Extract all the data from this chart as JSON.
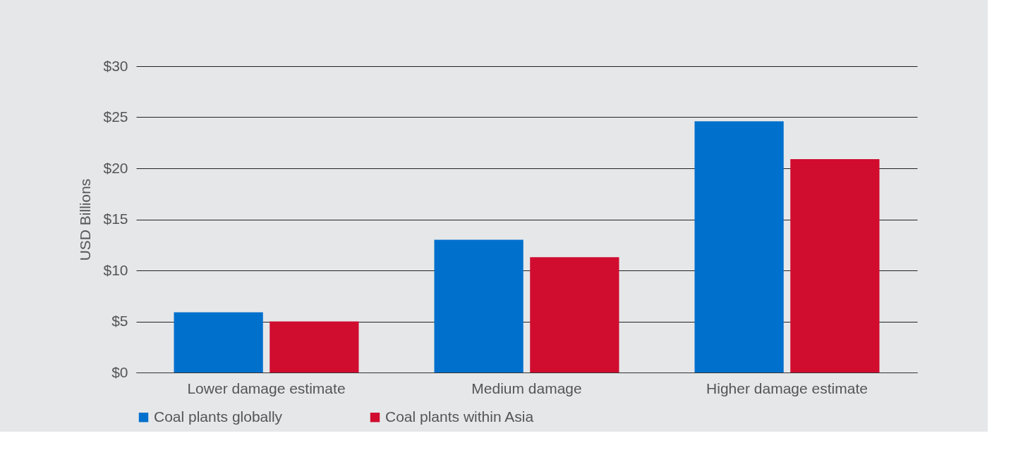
{
  "chart_data": {
    "type": "bar",
    "ylabel": "USD Billions",
    "categories": [
      "Lower damage estimate",
      "Medium damage",
      "Higher damage estimate"
    ],
    "series": [
      {
        "name": "Coal plants globally",
        "color": "#0070cd",
        "values": [
          5.9,
          13.0,
          24.6
        ]
      },
      {
        "name": "Coal plants within Asia",
        "color": "#d00c2f",
        "values": [
          5.0,
          11.3,
          20.9
        ]
      }
    ],
    "ylim": [
      0,
      30
    ],
    "yticks": [
      {
        "value": 0,
        "label": "$0"
      },
      {
        "value": 5,
        "label": "$5"
      },
      {
        "value": 10,
        "label": "$10"
      },
      {
        "value": 15,
        "label": "$15"
      },
      {
        "value": 20,
        "label": "$20"
      },
      {
        "value": 25,
        "label": "$25"
      },
      {
        "value": 30,
        "label": "$30"
      }
    ],
    "grid": "y",
    "legend": "bottom"
  }
}
